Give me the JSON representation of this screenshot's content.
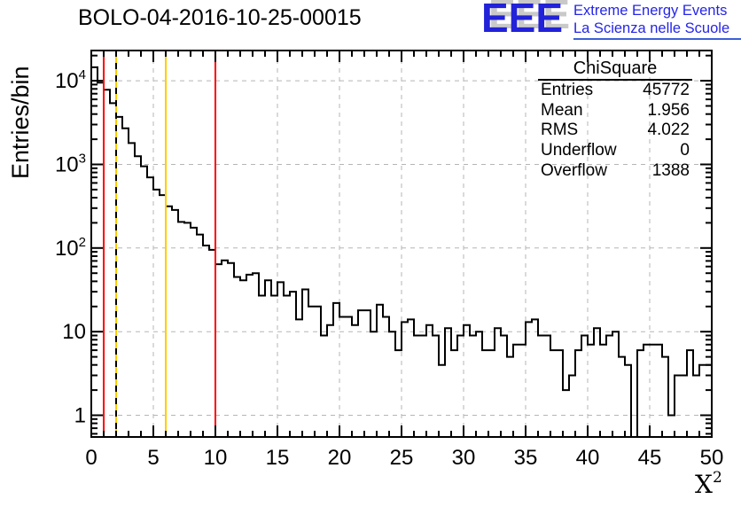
{
  "title": "BOLO-04-2016-10-25-00015",
  "logo": {
    "acronym": "EEE",
    "line1": "Extreme Energy Events",
    "line2": "La Scienza nelle Scuole",
    "color": "#2222d8",
    "text_color": "#2525e8",
    "shadow_color": "#c9c9c9",
    "underline_color": "#3d5fd6"
  },
  "stats": {
    "title": "ChiSquare",
    "rows": [
      {
        "label": "Entries",
        "value": "45772"
      },
      {
        "label": "Mean",
        "value": "1.956"
      },
      {
        "label": "RMS",
        "value": "4.022"
      },
      {
        "label": "Underflow",
        "value": "0"
      },
      {
        "label": "Overflow",
        "value": "1388"
      }
    ]
  },
  "axis": {
    "ylabel": "Entries/bin",
    "xlabel_base": "X",
    "xlabel_exp": "2",
    "x_tick_labels": [
      "0",
      "5",
      "10",
      "15",
      "20",
      "25",
      "30",
      "35",
      "40",
      "45",
      "50"
    ],
    "y_tick_labels": [
      {
        "base": "1",
        "exp": ""
      },
      {
        "base": "10",
        "exp": ""
      },
      {
        "base": "10",
        "exp": "2"
      },
      {
        "base": "10",
        "exp": "3"
      },
      {
        "base": "10",
        "exp": "4"
      }
    ]
  },
  "chart_data": {
    "type": "bar",
    "title": "BOLO-04-2016-10-25-00015",
    "xlabel": "X^2",
    "ylabel": "Entries/bin",
    "xlim": [
      0,
      50
    ],
    "ylim_log": [
      0.55,
      23000
    ],
    "yscale": "log",
    "grid": true,
    "grid_color": "#b5b5b5",
    "line_color": "#000000",
    "bin_start": 0,
    "bin_width": 0.5,
    "x_major_ticks": [
      0,
      5,
      10,
      15,
      20,
      25,
      30,
      35,
      40,
      45,
      50
    ],
    "x_minor_step": 1,
    "y_decades": [
      1,
      10,
      100,
      1000,
      10000
    ],
    "values": [
      14500,
      9500,
      7800,
      5400,
      3700,
      2700,
      1800,
      1250,
      950,
      700,
      500,
      430,
      315,
      285,
      205,
      200,
      175,
      145,
      107,
      95,
      64,
      71,
      66,
      45,
      41,
      48,
      50,
      27,
      41,
      27,
      39,
      27,
      30,
      14,
      32,
      20,
      20,
      9,
      12,
      22,
      15,
      15,
      12,
      18,
      18,
      10,
      21,
      15,
      10,
      6,
      13,
      14,
      9,
      9,
      12,
      9,
      4,
      11,
      6,
      9,
      12,
      9,
      10,
      6,
      6,
      11,
      9,
      5,
      7,
      7,
      13,
      14,
      9,
      9,
      6,
      6,
      2,
      3,
      6,
      9,
      7,
      11,
      7,
      9,
      10,
      5,
      4,
      0,
      6,
      7,
      7,
      7,
      5,
      1,
      3,
      3,
      6,
      3,
      4,
      4
    ],
    "vlines": [
      {
        "x": 1,
        "color": "#ff0000",
        "dash": false
      },
      {
        "x": 2,
        "color": "#ffcc00",
        "dash": false
      },
      {
        "x": 2,
        "color": "#000000",
        "dash": true
      },
      {
        "x": 6,
        "color": "#ffcc00",
        "dash": false
      },
      {
        "x": 10,
        "color": "#ff0000",
        "dash": false
      }
    ]
  }
}
